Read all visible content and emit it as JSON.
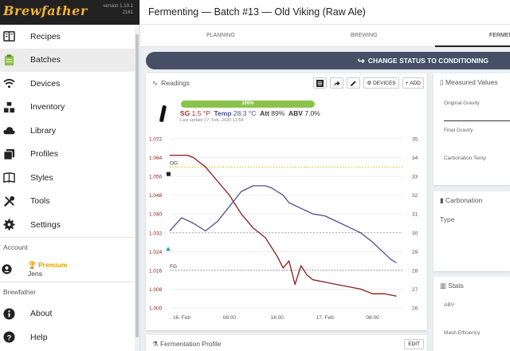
{
  "brand": {
    "logo": "Brewfather",
    "version": "version 1.10.1",
    "version_sub": "2161"
  },
  "nav": [
    {
      "label": "Recipes",
      "icon": "recipes-icon"
    },
    {
      "label": "Batches",
      "icon": "batches-icon",
      "active": true
    },
    {
      "label": "Devices",
      "icon": "wifi-icon"
    },
    {
      "label": "Inventory",
      "icon": "inventory-icon"
    },
    {
      "label": "Library",
      "icon": "cloud-icon"
    },
    {
      "label": "Profiles",
      "icon": "profiles-icon"
    },
    {
      "label": "Styles",
      "icon": "book-icon"
    },
    {
      "label": "Tools",
      "icon": "tools-icon"
    },
    {
      "label": "Settings",
      "icon": "gear-icon"
    }
  ],
  "account": {
    "section": "Account",
    "plan": "Premium",
    "user": "Jens"
  },
  "brewfather_section": {
    "label": "Brewfather",
    "items": [
      "About",
      "Help"
    ]
  },
  "header": {
    "title": "Fermenting — Batch #13 — Old Viking (Raw Ale)"
  },
  "tabs": [
    "PLANNING",
    "BREWING",
    "FERMEN"
  ],
  "status_button": "CHANGE STATUS TO CONDITIONING",
  "readings": {
    "title": "Readings",
    "devices_label": "DEVICES",
    "add_label": "ADD",
    "progress": "100%",
    "progress_value": 1.0,
    "sg_label": "SG",
    "sg_value": "1.5 °P",
    "temp_label": "Temp",
    "temp_value": "28.3 °C",
    "att_label": "Att",
    "att_value": "89%",
    "abv_label": "ABV",
    "abv_value": "7.0%",
    "last_update_label": "Last update",
    "last_update_value": "17. Feb. 2020 12:58"
  },
  "chart_data": {
    "type": "line",
    "x_ticks": [
      "16. Feb",
      "08:00",
      "16:00",
      "17. Feb",
      "08:00"
    ],
    "x_tick_pos": [
      0,
      8,
      16,
      24,
      32
    ],
    "x_range": [
      -2,
      37
    ],
    "y_left_ticks": [
      "1.000",
      "1.008",
      "1.016",
      "1.024",
      "1.032",
      "1.040",
      "1.048",
      "1.056",
      "1.064",
      "1.072"
    ],
    "y_left_range": [
      1.0,
      1.072
    ],
    "y_right_ticks": [
      "26",
      "27",
      "28",
      "29",
      "30",
      "31",
      "32",
      "33",
      "34",
      "35"
    ],
    "y_right_range": [
      26,
      35
    ],
    "annotations": [
      {
        "label": "OG",
        "value": 1.06,
        "color": "#d4c200",
        "axis": "left"
      },
      {
        "label": "FG",
        "value": 1.016,
        "color": "#888888",
        "axis": "left"
      }
    ],
    "threshold_line": {
      "value": 30,
      "axis": "right",
      "color": "#999999"
    },
    "series": [
      {
        "name": "SG",
        "color": "#8b1a1a",
        "axis": "left",
        "x": [
          -2,
          1,
          2,
          4,
          6,
          8,
          10,
          12,
          14,
          15,
          16,
          17,
          18,
          19,
          20,
          21,
          22,
          24,
          26,
          28,
          30,
          32,
          34,
          36
        ],
        "y": [
          1.065,
          1.065,
          1.064,
          1.06,
          1.054,
          1.048,
          1.04,
          1.034,
          1.03,
          1.026,
          1.022,
          1.017,
          1.02,
          1.01,
          1.018,
          1.014,
          1.012,
          1.011,
          1.01,
          1.009,
          1.008,
          1.006,
          1.006,
          1.005
        ]
      },
      {
        "name": "Temp",
        "color": "#4a4f8c",
        "axis": "right",
        "x": [
          -2,
          0,
          2,
          4,
          6,
          8,
          10,
          12,
          14,
          15,
          16,
          17,
          18,
          20,
          22,
          24,
          26,
          28,
          30,
          32,
          34,
          35,
          36
        ],
        "y": [
          30.1,
          30.8,
          30.5,
          30.1,
          30.6,
          31.4,
          32.2,
          32.5,
          32.5,
          32.4,
          32.2,
          32.0,
          31.6,
          31.3,
          31.0,
          30.9,
          30.6,
          30.3,
          30.0,
          29.5,
          28.9,
          28.6,
          28.4
        ]
      }
    ]
  },
  "right": {
    "measured_title": "Measured Values",
    "fields": [
      "Original Gravity",
      "Final Gravity",
      "Carbonation Temp"
    ],
    "carbonation_title": "Carbonation",
    "carbonation_type": "Type",
    "stats_title": "Stats",
    "stats_fields": [
      "ABV",
      "Mash Efficiency"
    ]
  },
  "ferm_profile": {
    "title": "Fermentation Profile",
    "edit_label": "EDIT"
  },
  "colors": {
    "accent": "#455066",
    "progress": "#8bc34a",
    "sg": "#8b1a1a",
    "temp": "#4a4f8c",
    "premium": "#e0a200"
  }
}
